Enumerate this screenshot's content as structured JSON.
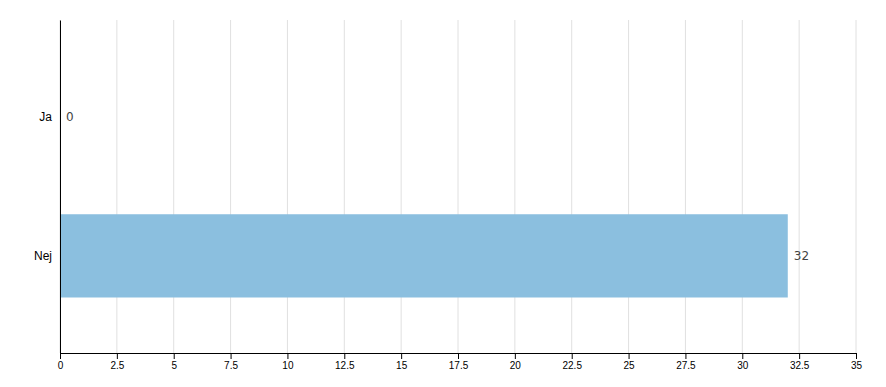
{
  "chart_data": {
    "type": "bar",
    "orientation": "horizontal",
    "categories": [
      "Nej",
      "Ja"
    ],
    "values": [
      32,
      0
    ],
    "color": "#8BBFDF",
    "xlim": [
      0,
      35
    ],
    "xticks": [
      0,
      2.5,
      5,
      7.5,
      10,
      12.5,
      15,
      17.5,
      20,
      22.5,
      25,
      27.5,
      30,
      32.5,
      35
    ],
    "grid": true,
    "data_labels": true
  }
}
